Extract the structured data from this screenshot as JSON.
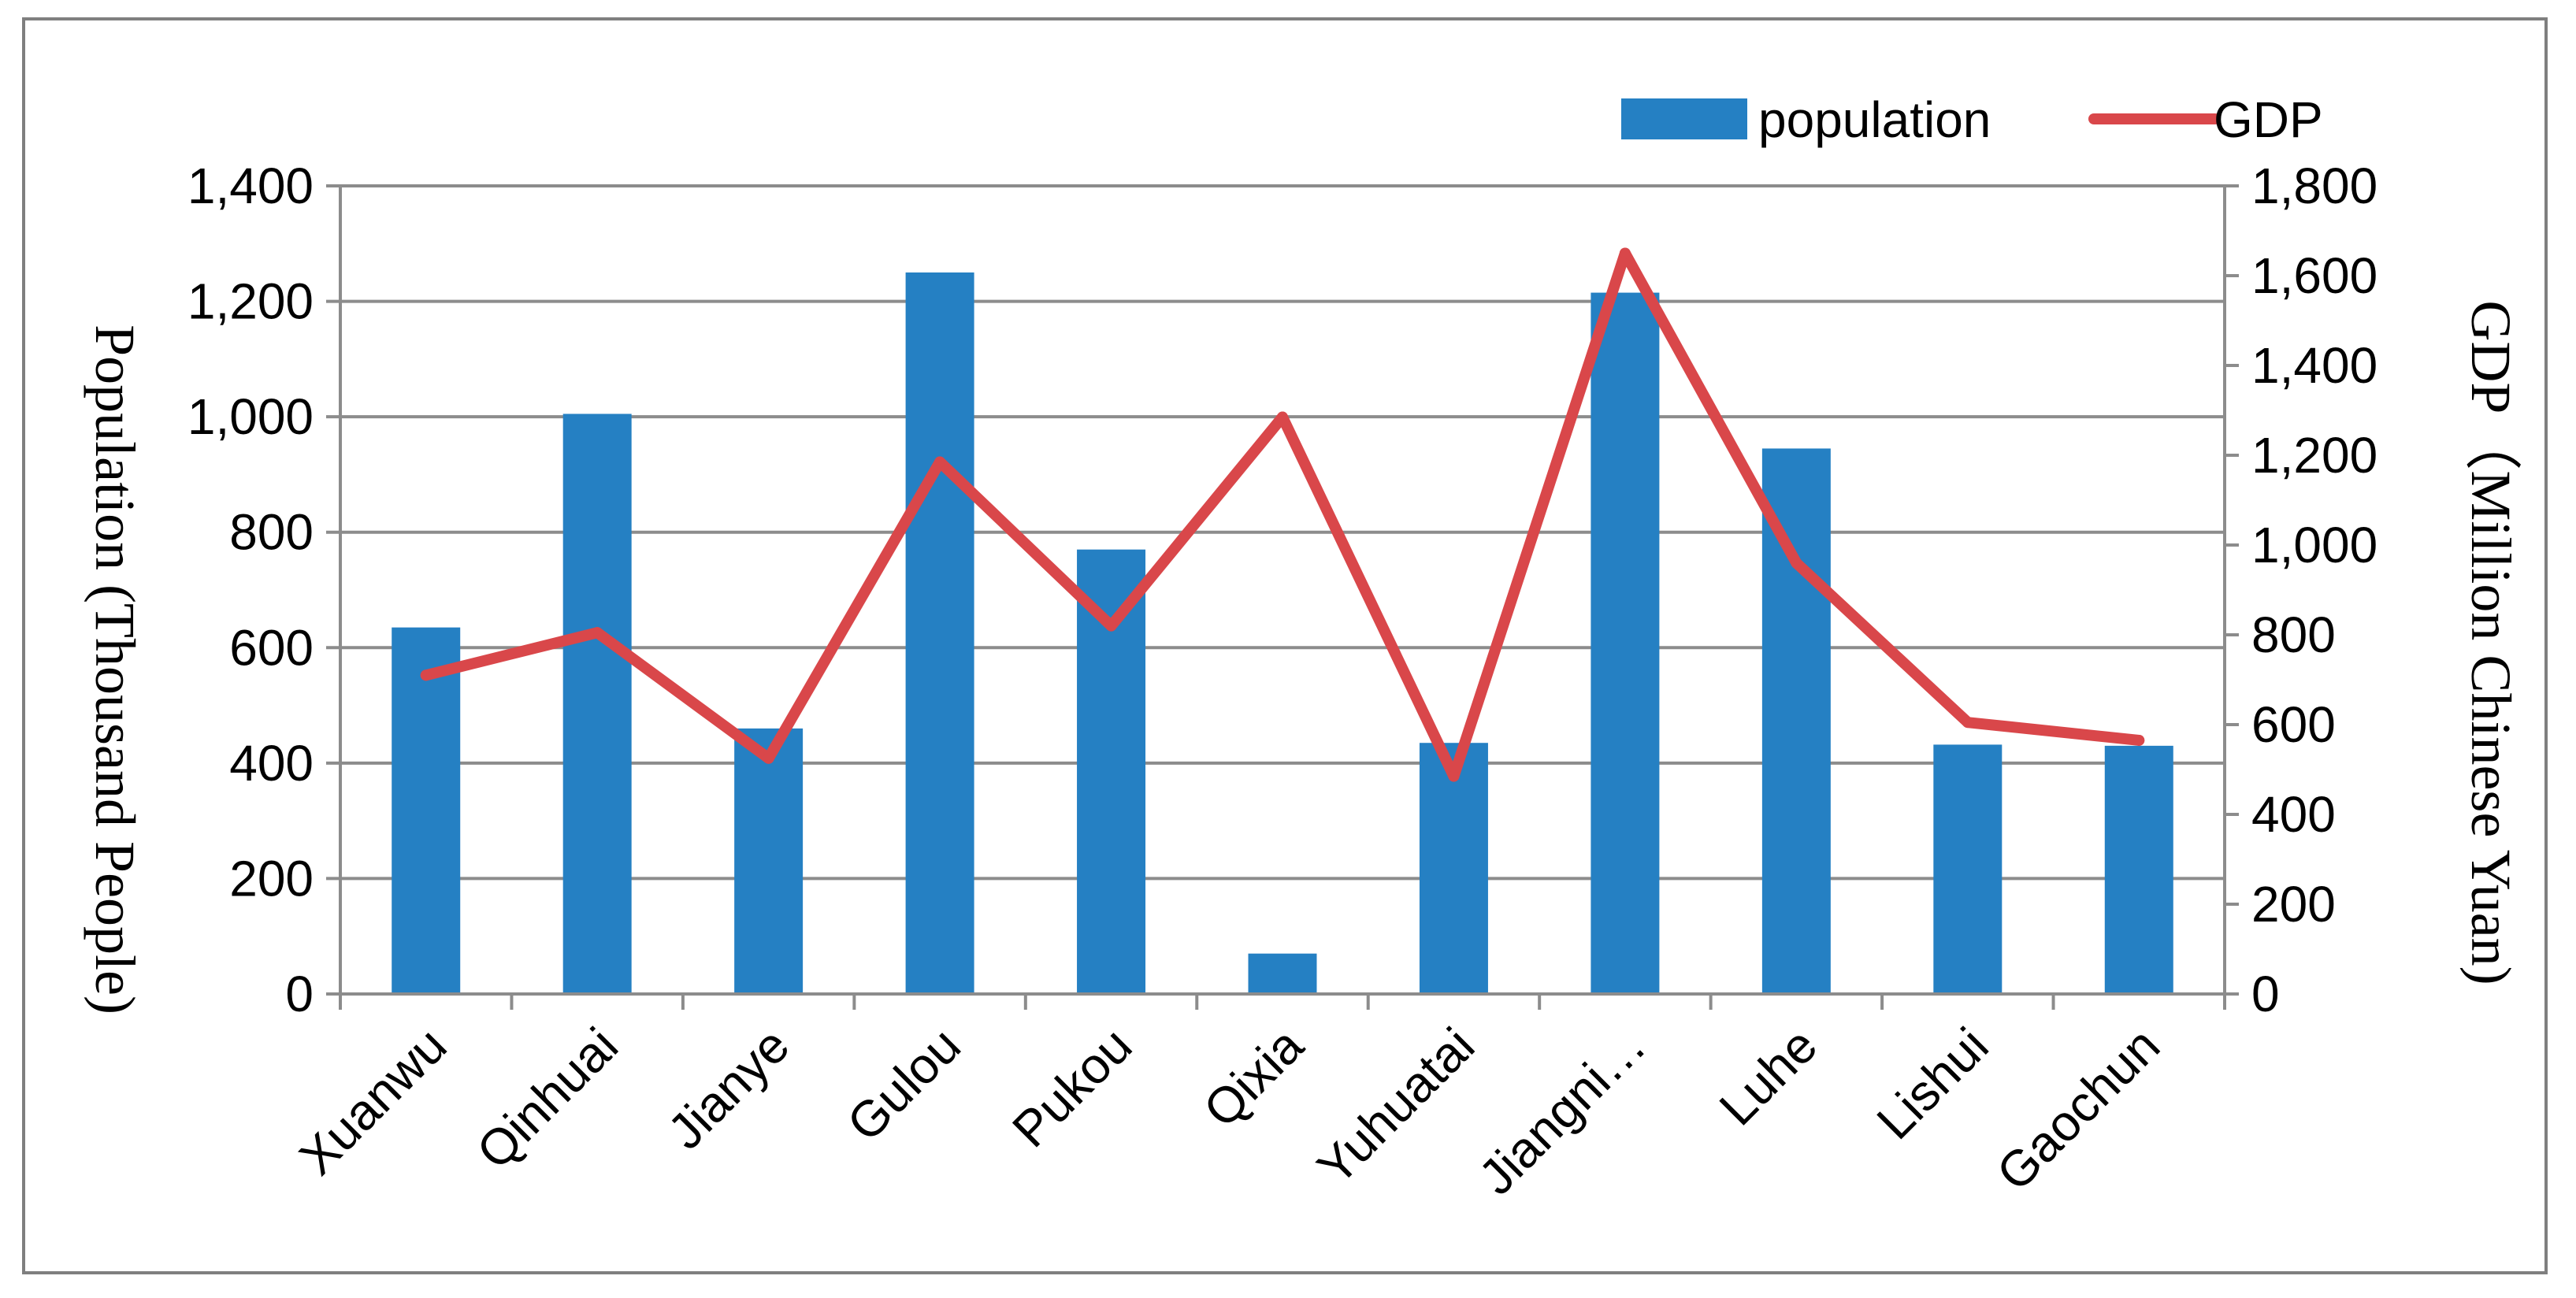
{
  "chart_data": {
    "type": "bar",
    "categories": [
      "Xuanwu",
      "Qinhuai",
      "Jianye",
      "Gulou",
      "Pukou",
      "Qixia",
      "Yuhuatai",
      "Jiangni…",
      "Luhe",
      "Lishui",
      "Gaochun"
    ],
    "series": [
      {
        "name": "population",
        "type": "bar",
        "axis": "left",
        "color": "#2580c3",
        "values": [
          635,
          1005,
          460,
          1250,
          770,
          70,
          435,
          1215,
          945,
          432,
          430
        ]
      },
      {
        "name": "GDP",
        "type": "line",
        "axis": "right",
        "color": "#d9474a",
        "values": [
          710,
          805,
          525,
          1185,
          820,
          1285,
          485,
          1650,
          960,
          605,
          565
        ]
      }
    ],
    "ylabel": "Population (Thousand People)",
    "y2label": "GDP（Million Chinese Yuan)",
    "ylim": [
      0,
      1400
    ],
    "y2lim": [
      0,
      1800
    ],
    "yticks": [
      "0",
      "200",
      "400",
      "600",
      "800",
      "1,000",
      "1,200",
      "1,400"
    ],
    "y2ticks": [
      "0",
      "200",
      "400",
      "600",
      "800",
      "1,000",
      "1,200",
      "1,400",
      "1,600",
      "1,800"
    ],
    "grid": true,
    "legend": "top-right"
  }
}
